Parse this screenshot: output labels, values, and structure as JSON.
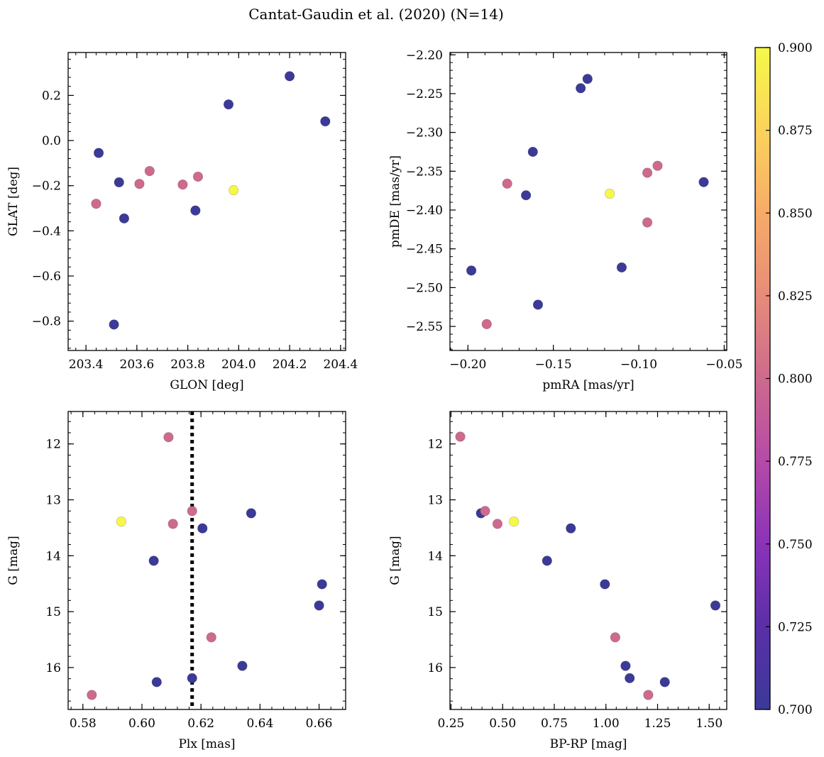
{
  "figure_title": "Cantat-Gaudin et al. (2020) (N=14)",
  "colorbar": {
    "min": 0.7,
    "max": 0.9,
    "ticks": [
      "0.700",
      "0.725",
      "0.750",
      "0.775",
      "0.800",
      "0.825",
      "0.850",
      "0.875",
      "0.900"
    ],
    "colormap": "plasma",
    "colors": [
      "#3b3a98",
      "#5a2fa7",
      "#8a33b8",
      "#b54aa8",
      "#cd6a8d",
      "#e68c7a",
      "#f7ab67",
      "#fbd35c",
      "#f5f84a"
    ]
  },
  "chart_data": [
    {
      "type": "scatter",
      "xlabel": "GLON [deg]",
      "ylabel": "GLAT [deg]",
      "xlim": [
        203.33,
        204.42
      ],
      "ylim": [
        -0.93,
        0.39
      ],
      "xticks": [
        {
          "v": 203.4,
          "label": "203.4"
        },
        {
          "v": 203.6,
          "label": "203.6"
        },
        {
          "v": 203.8,
          "label": "203.8"
        },
        {
          "v": 204.0,
          "label": "204.0"
        },
        {
          "v": 204.2,
          "label": "204.2"
        },
        {
          "v": 204.4,
          "label": "204.4"
        }
      ],
      "yticks": [
        {
          "v": 0.2,
          "label": "0.2"
        },
        {
          "v": 0.0,
          "label": "0.0"
        },
        {
          "v": -0.2,
          "label": "−0.2"
        },
        {
          "v": -0.4,
          "label": "−0.4"
        },
        {
          "v": -0.6,
          "label": "−0.6"
        },
        {
          "v": -0.8,
          "label": "−0.8"
        }
      ],
      "points": [
        {
          "x": 203.44,
          "y": -0.28,
          "c": 0.8
        },
        {
          "x": 203.45,
          "y": -0.055,
          "c": 0.7
        },
        {
          "x": 203.53,
          "y": -0.185,
          "c": 0.7
        },
        {
          "x": 203.51,
          "y": -0.815,
          "c": 0.7
        },
        {
          "x": 203.55,
          "y": -0.345,
          "c": 0.7
        },
        {
          "x": 203.61,
          "y": -0.192,
          "c": 0.8
        },
        {
          "x": 203.65,
          "y": -0.135,
          "c": 0.8
        },
        {
          "x": 203.78,
          "y": -0.195,
          "c": 0.8
        },
        {
          "x": 203.83,
          "y": -0.31,
          "c": 0.7
        },
        {
          "x": 203.84,
          "y": -0.16,
          "c": 0.8
        },
        {
          "x": 203.96,
          "y": 0.16,
          "c": 0.7
        },
        {
          "x": 203.98,
          "y": -0.22,
          "c": 0.9
        },
        {
          "x": 204.2,
          "y": 0.285,
          "c": 0.7
        },
        {
          "x": 204.34,
          "y": 0.085,
          "c": 0.7
        }
      ]
    },
    {
      "type": "scatter",
      "xlabel": "pmRA [mas/yr]",
      "ylabel": "pmDE [mas/yr]",
      "xlim": [
        -0.2105,
        -0.0485
      ],
      "ylim": [
        -2.581,
        -2.197
      ],
      "xticks": [
        {
          "v": -0.2,
          "label": "−0.20"
        },
        {
          "v": -0.15,
          "label": "−0.15"
        },
        {
          "v": -0.1,
          "label": "−0.10"
        },
        {
          "v": -0.05,
          "label": "−0.05"
        }
      ],
      "yticks": [
        {
          "v": -2.2,
          "label": "−2.20"
        },
        {
          "v": -2.25,
          "label": "−2.25"
        },
        {
          "v": -2.3,
          "label": "−2.30"
        },
        {
          "v": -2.35,
          "label": "−2.35"
        },
        {
          "v": -2.4,
          "label": "−2.40"
        },
        {
          "v": -2.45,
          "label": "−2.45"
        },
        {
          "v": -2.5,
          "label": "−2.50"
        },
        {
          "v": -2.55,
          "label": "−2.55"
        }
      ],
      "points": [
        {
          "x": -0.198,
          "y": -2.478,
          "c": 0.7
        },
        {
          "x": -0.189,
          "y": -2.547,
          "c": 0.8
        },
        {
          "x": -0.177,
          "y": -2.366,
          "c": 0.8
        },
        {
          "x": -0.166,
          "y": -2.381,
          "c": 0.7
        },
        {
          "x": -0.162,
          "y": -2.325,
          "c": 0.7
        },
        {
          "x": -0.159,
          "y": -2.522,
          "c": 0.7
        },
        {
          "x": -0.134,
          "y": -2.243,
          "c": 0.7
        },
        {
          "x": -0.13,
          "y": -2.231,
          "c": 0.7
        },
        {
          "x": -0.117,
          "y": -2.379,
          "c": 0.9
        },
        {
          "x": -0.11,
          "y": -2.474,
          "c": 0.7
        },
        {
          "x": -0.095,
          "y": -2.416,
          "c": 0.8
        },
        {
          "x": -0.095,
          "y": -2.352,
          "c": 0.8
        },
        {
          "x": -0.089,
          "y": -2.343,
          "c": 0.8
        },
        {
          "x": -0.062,
          "y": -2.364,
          "c": 0.7
        }
      ]
    },
    {
      "type": "scatter",
      "xlabel": "Plx [mas]",
      "ylabel": "G [mag]",
      "xlim": [
        0.575,
        0.669
      ],
      "ylim": [
        16.75,
        11.42
      ],
      "vline": 0.617,
      "xticks": [
        {
          "v": 0.58,
          "label": "0.58"
        },
        {
          "v": 0.6,
          "label": "0.60"
        },
        {
          "v": 0.62,
          "label": "0.62"
        },
        {
          "v": 0.64,
          "label": "0.64"
        },
        {
          "v": 0.66,
          "label": "0.66"
        }
      ],
      "yticks": [
        {
          "v": 12,
          "label": "12"
        },
        {
          "v": 13,
          "label": "13"
        },
        {
          "v": 14,
          "label": "14"
        },
        {
          "v": 15,
          "label": "15"
        },
        {
          "v": 16,
          "label": "16"
        }
      ],
      "points": [
        {
          "x": 0.583,
          "y": 16.49,
          "c": 0.8
        },
        {
          "x": 0.593,
          "y": 13.39,
          "c": 0.9
        },
        {
          "x": 0.604,
          "y": 14.09,
          "c": 0.7
        },
        {
          "x": 0.605,
          "y": 16.26,
          "c": 0.7
        },
        {
          "x": 0.609,
          "y": 11.88,
          "c": 0.8
        },
        {
          "x": 0.6105,
          "y": 13.43,
          "c": 0.8
        },
        {
          "x": 0.617,
          "y": 13.2,
          "c": 0.8
        },
        {
          "x": 0.617,
          "y": 16.19,
          "c": 0.7
        },
        {
          "x": 0.6205,
          "y": 13.51,
          "c": 0.7
        },
        {
          "x": 0.6235,
          "y": 15.46,
          "c": 0.8
        },
        {
          "x": 0.634,
          "y": 15.97,
          "c": 0.7
        },
        {
          "x": 0.637,
          "y": 13.24,
          "c": 0.7
        },
        {
          "x": 0.66,
          "y": 14.89,
          "c": 0.7
        },
        {
          "x": 0.661,
          "y": 14.51,
          "c": 0.7
        }
      ]
    },
    {
      "type": "scatter",
      "xlabel": "BP-RP [mag]",
      "ylabel": "G [mag]",
      "xlim": [
        0.245,
        1.585
      ],
      "ylim": [
        16.75,
        11.42
      ],
      "xticks": [
        {
          "v": 0.25,
          "label": "0.25"
        },
        {
          "v": 0.5,
          "label": "0.50"
        },
        {
          "v": 0.75,
          "label": "0.75"
        },
        {
          "v": 1.0,
          "label": "1.00"
        },
        {
          "v": 1.25,
          "label": "1.25"
        },
        {
          "v": 1.5,
          "label": "1.50"
        }
      ],
      "yticks": [
        {
          "v": 12,
          "label": "12"
        },
        {
          "v": 13,
          "label": "13"
        },
        {
          "v": 14,
          "label": "14"
        },
        {
          "v": 15,
          "label": "15"
        },
        {
          "v": 16,
          "label": "16"
        }
      ],
      "points": [
        {
          "x": 0.295,
          "y": 11.87,
          "c": 0.8
        },
        {
          "x": 0.395,
          "y": 13.24,
          "c": 0.7
        },
        {
          "x": 0.415,
          "y": 13.2,
          "c": 0.8
        },
        {
          "x": 0.475,
          "y": 13.43,
          "c": 0.8
        },
        {
          "x": 0.555,
          "y": 13.39,
          "c": 0.9
        },
        {
          "x": 0.715,
          "y": 14.09,
          "c": 0.7
        },
        {
          "x": 0.83,
          "y": 13.51,
          "c": 0.7
        },
        {
          "x": 0.995,
          "y": 14.51,
          "c": 0.7
        },
        {
          "x": 1.045,
          "y": 15.46,
          "c": 0.8
        },
        {
          "x": 1.095,
          "y": 15.97,
          "c": 0.7
        },
        {
          "x": 1.115,
          "y": 16.19,
          "c": 0.7
        },
        {
          "x": 1.205,
          "y": 16.49,
          "c": 0.8
        },
        {
          "x": 1.285,
          "y": 16.26,
          "c": 0.7
        },
        {
          "x": 1.53,
          "y": 14.89,
          "c": 0.7
        }
      ]
    }
  ]
}
